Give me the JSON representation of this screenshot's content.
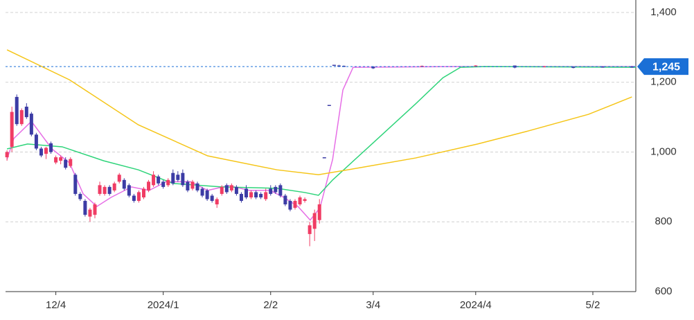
{
  "chart_data": {
    "type": "candlestick",
    "xlim": [
      -0.3,
      128.8
    ],
    "ylim": [
      600,
      1400
    ],
    "xticks": [
      {
        "value": 10,
        "label": "12/4"
      },
      {
        "value": 32,
        "label": "2024/1"
      },
      {
        "value": 54,
        "label": "2/2"
      },
      {
        "value": 75,
        "label": "3/4"
      },
      {
        "value": 96,
        "label": "2024/4"
      },
      {
        "value": 120,
        "label": "5/2"
      }
    ],
    "yticks": [
      {
        "value": 600,
        "label": "600"
      },
      {
        "value": 800,
        "label": "800"
      },
      {
        "value": 1000,
        "label": "1,000"
      },
      {
        "value": 1200,
        "label": "1,200"
      },
      {
        "value": 1400,
        "label": "1,400"
      }
    ],
    "grid": true,
    "up_color": "#f03c64",
    "down_color": "#3c3ca5",
    "last_price": {
      "value": 1245,
      "label": "1,245",
      "color": "#1a6fd6"
    },
    "candles": {
      "x": [
        0,
        1,
        2,
        3,
        4,
        5,
        6,
        7,
        8,
        9,
        10,
        11,
        12,
        13,
        14,
        15,
        16,
        17,
        18,
        19,
        20,
        21,
        22,
        23,
        24,
        25,
        26,
        27,
        28,
        29,
        30,
        31,
        32,
        33,
        34,
        35,
        36,
        37,
        38,
        39,
        40,
        41,
        42,
        43,
        44,
        45,
        46,
        47,
        48,
        49,
        50,
        51,
        52,
        53,
        54,
        55,
        56,
        57,
        58,
        59,
        60,
        61,
        62,
        63,
        64,
        65,
        66,
        67,
        68,
        69,
        75,
        85,
        96,
        104,
        110,
        116,
        122,
        128
      ],
      "open": [
        985,
        1015,
        1158,
        1080,
        1130,
        1110,
        1050,
        1010,
        995,
        1025,
        970,
        975,
        978,
        960,
        935,
        880,
        860,
        815,
        820,
        880,
        880,
        900,
        890,
        915,
        920,
        905,
        875,
        860,
        870,
        890,
        905,
        930,
        915,
        905,
        940,
        935,
        940,
        915,
        895,
        910,
        895,
        890,
        875,
        850,
        880,
        905,
        890,
        900,
        880,
        895,
        870,
        885,
        880,
        865,
        895,
        900,
        905,
        875,
        860,
        840,
        850,
        860,
        765,
        780,
        805,
        985,
        1135,
        1250,
        1248,
        1247,
        1245,
        1246,
        1247,
        1248,
        1245,
        1244,
        1245,
        1245
      ],
      "high": [
        1005,
        1130,
        1165,
        1125,
        1140,
        1115,
        1055,
        1015,
        1015,
        1030,
        990,
        990,
        985,
        985,
        940,
        885,
        865,
        840,
        855,
        915,
        905,
        905,
        915,
        940,
        925,
        910,
        880,
        890,
        900,
        920,
        945,
        935,
        920,
        925,
        950,
        945,
        950,
        920,
        920,
        915,
        900,
        895,
        880,
        870,
        905,
        910,
        910,
        905,
        885,
        905,
        890,
        890,
        885,
        895,
        905,
        905,
        910,
        880,
        865,
        865,
        875,
        870,
        800,
        835,
        865,
        985,
        1135,
        1250,
        1250,
        1248,
        1246,
        1248,
        1249,
        1248,
        1247,
        1245,
        1246,
        1247
      ],
      "low": [
        975,
        1000,
        1075,
        1075,
        1095,
        1045,
        1005,
        985,
        980,
        995,
        965,
        965,
        950,
        955,
        875,
        860,
        815,
        800,
        810,
        875,
        875,
        875,
        885,
        910,
        890,
        870,
        855,
        855,
        865,
        885,
        900,
        905,
        895,
        900,
        905,
        915,
        900,
        885,
        890,
        885,
        870,
        860,
        855,
        840,
        875,
        880,
        885,
        875,
        855,
        865,
        865,
        865,
        865,
        860,
        875,
        880,
        870,
        845,
        830,
        835,
        845,
        855,
        730,
        745,
        795,
        985,
        1135,
        1250,
        1245,
        1244,
        1238,
        1244,
        1245,
        1240,
        1243,
        1240,
        1243,
        1244
      ],
      "close": [
        1000,
        1115,
        1080,
        1120,
        1100,
        1050,
        1010,
        990,
        1012,
        1000,
        985,
        985,
        955,
        980,
        880,
        865,
        820,
        835,
        850,
        905,
        900,
        880,
        910,
        935,
        895,
        875,
        860,
        885,
        895,
        915,
        935,
        910,
        900,
        920,
        910,
        920,
        905,
        890,
        915,
        890,
        875,
        865,
        860,
        865,
        900,
        885,
        905,
        880,
        860,
        870,
        885,
        870,
        870,
        885,
        880,
        885,
        875,
        850,
        835,
        860,
        870,
        865,
        790,
        825,
        850,
        985,
        1135,
        1250,
        1247,
        1246,
        1240,
        1247,
        1248,
        1242,
        1246,
        1241,
        1245,
        1245
      ]
    },
    "lines": [
      {
        "color": "#e66ee6",
        "x": [
          0,
          1.4,
          5,
          9.2,
          12.8,
          15.6,
          18.4,
          21.3,
          25.5,
          29.1,
          32.6,
          37.6,
          41.1,
          45.4,
          49.6,
          53.9,
          56.7,
          59.6,
          62.1,
          64.1,
          66.7,
          68.8,
          70.9,
          92.9,
          128.8
        ],
        "values": [
          979,
          1039,
          1088,
          1009,
          969,
          880,
          844,
          870,
          900,
          890,
          915,
          915,
          890,
          904,
          890,
          890,
          870,
          844,
          805,
          840,
          979,
          1178,
          1243,
          1245,
          1245
        ]
      },
      {
        "color": "#2ed47a",
        "x": [
          0,
          4.2,
          11.3,
          19.8,
          26.9,
          34,
          44,
          55.3,
          61,
          63.8,
          66.7,
          75.2,
          83.7,
          89.3,
          92.9,
          97.9,
          128.8
        ],
        "values": [
          1009,
          1023,
          1015,
          975,
          949,
          910,
          900,
          896,
          884,
          876,
          920,
          1029,
          1138,
          1213,
          1243,
          1245,
          1243
        ]
      },
      {
        "color": "#f5c518",
        "x": [
          0,
          12.8,
          26.9,
          41.1,
          55.3,
          63.8,
          72.3,
          83.7,
          96.4,
          106.4,
          119.1,
          128
        ],
        "values": [
          1293,
          1207,
          1078,
          989,
          949,
          935,
          955,
          983,
          1023,
          1059,
          1108,
          1158
        ]
      }
    ]
  }
}
